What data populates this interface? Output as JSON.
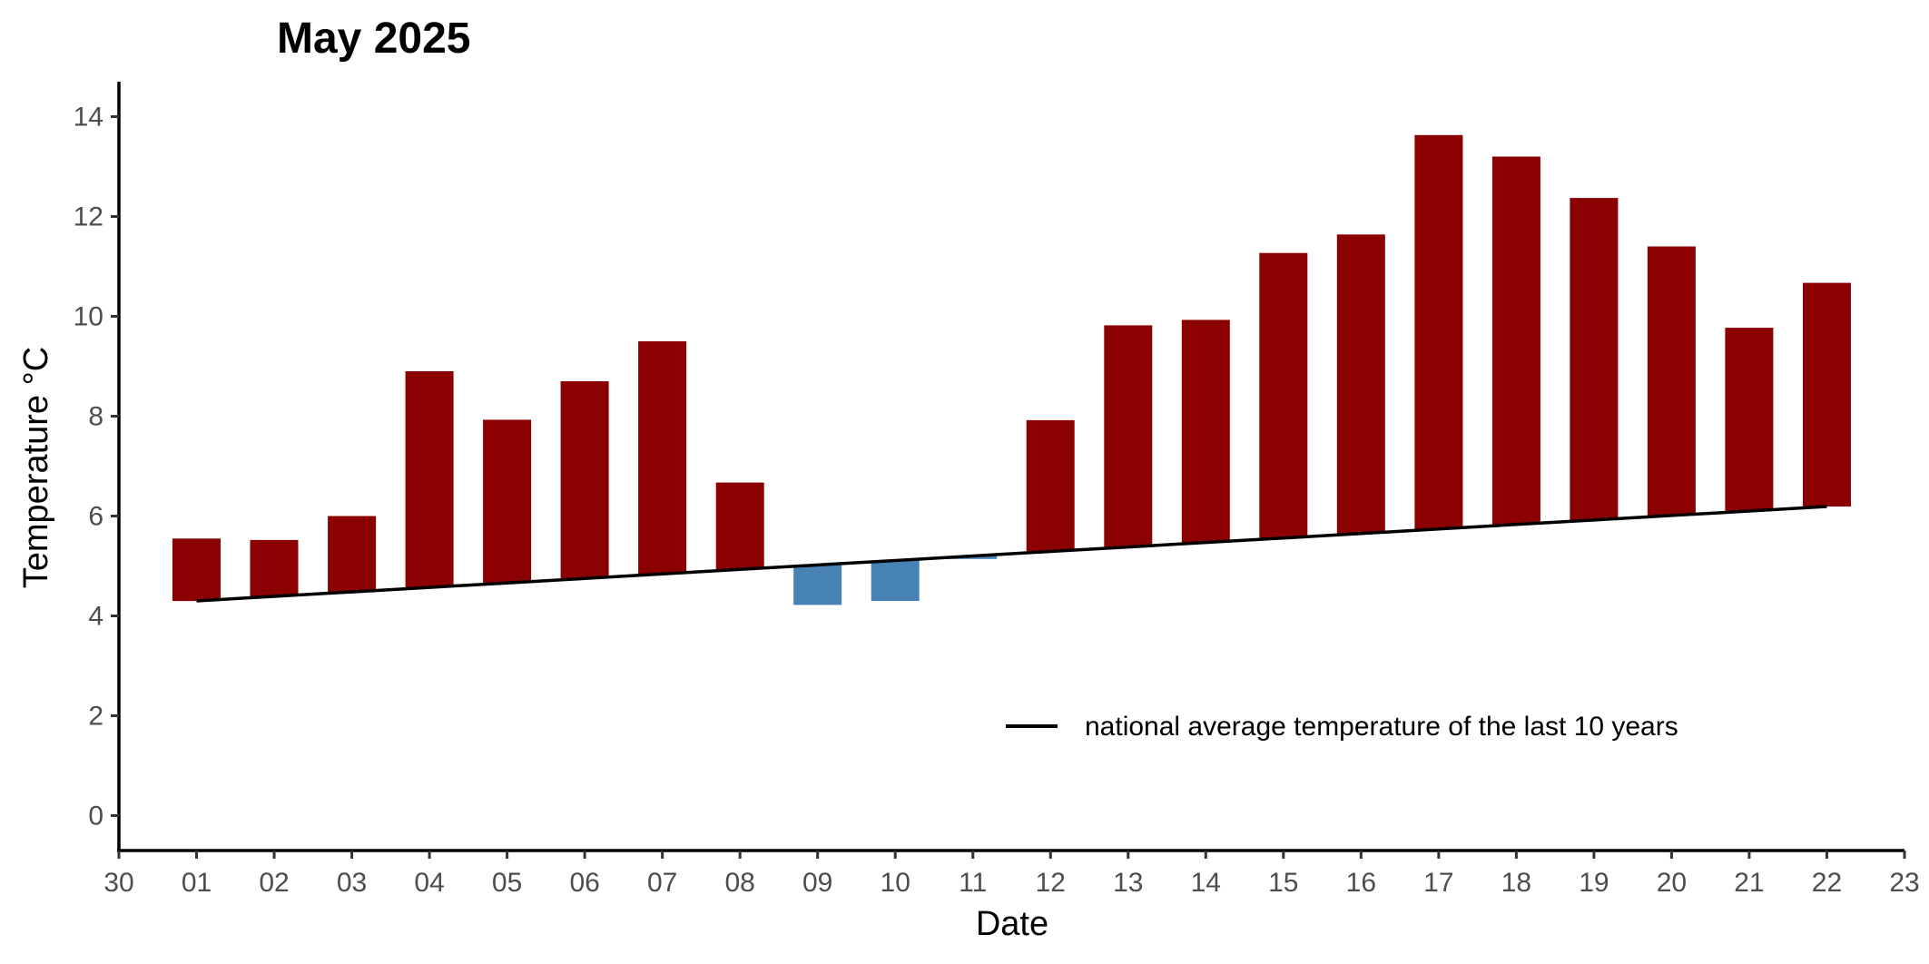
{
  "chart_data": {
    "type": "bar",
    "title": "May 2025",
    "xlabel": "Date",
    "ylabel": "Temperature °C",
    "ylim": [
      -0.7,
      14.7
    ],
    "xlim": [
      0,
      23
    ],
    "x_ticks": [
      "30",
      "01",
      "02",
      "03",
      "04",
      "05",
      "06",
      "07",
      "08",
      "09",
      "10",
      "11",
      "12",
      "13",
      "14",
      "15",
      "16",
      "17",
      "18",
      "19",
      "20",
      "21",
      "22",
      "23"
    ],
    "y_ticks": [
      0,
      2,
      4,
      6,
      8,
      10,
      12,
      14
    ],
    "grid": false,
    "legend_position": "bottom-right",
    "categories": [
      "01",
      "02",
      "03",
      "04",
      "05",
      "06",
      "07",
      "08",
      "09",
      "10",
      "11",
      "12",
      "13",
      "14",
      "15",
      "16",
      "17",
      "18",
      "19",
      "20",
      "21",
      "22"
    ],
    "series": [
      {
        "kind": "bar",
        "description": "daily mean temperature (bar spans from the 10-year average to the daily value)",
        "values": [
          5.55,
          5.52,
          6.0,
          8.9,
          7.93,
          8.7,
          9.5,
          6.67,
          4.22,
          4.3,
          5.14,
          7.92,
          9.82,
          9.93,
          11.27,
          11.64,
          13.63,
          13.2,
          12.37,
          11.4,
          9.77,
          10.67
        ]
      },
      {
        "kind": "line",
        "name": "national average temperature of the last 10 years",
        "values": [
          4.3,
          4.39,
          4.48,
          4.57,
          4.66,
          4.75,
          4.84,
          4.93,
          5.02,
          5.11,
          5.2,
          5.29,
          5.38,
          5.47,
          5.56,
          5.65,
          5.74,
          5.83,
          5.92,
          6.01,
          6.1,
          6.19
        ]
      }
    ],
    "colors": {
      "above_average": "#8B0000",
      "below_average": "#4682B4",
      "average_line": "#000000",
      "axis": "#000000",
      "tick_label": "#4d4d4d"
    }
  }
}
